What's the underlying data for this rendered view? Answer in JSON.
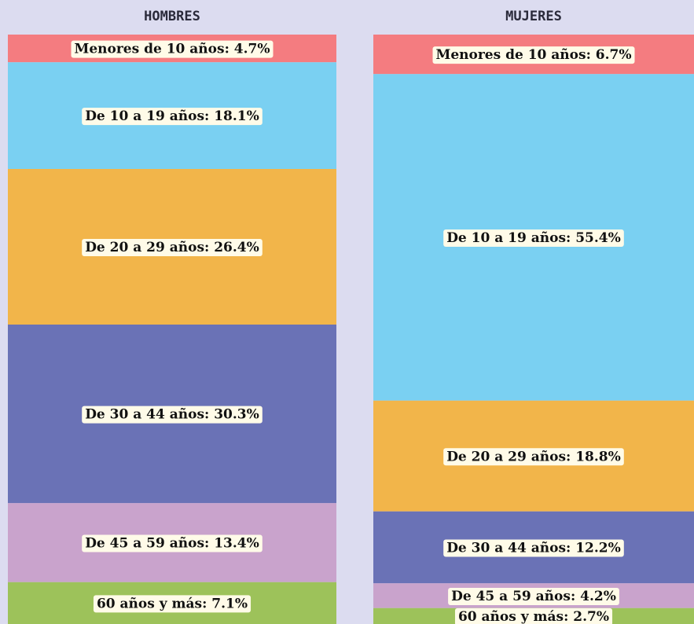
{
  "chart_data": [
    {
      "type": "stacked-column",
      "title": "HOMBRES",
      "values": [
        4.7,
        18.1,
        26.4,
        30.3,
        13.4,
        7.1
      ],
      "value_labels": [
        "Menores de 10 años: 4.7%",
        "De 10 a 19 años: 18.1%",
        "De 20 a 29 años: 26.4%",
        "De 30 a 44 años: 30.3%",
        "De 45 a 59 años: 13.4%",
        "60 años y más: 7.1%"
      ],
      "colors": [
        "#f47c80",
        "#7ad0f2",
        "#f2b54a",
        "#6a72b6",
        "#c9a3cc",
        "#9dc25a"
      ]
    },
    {
      "type": "stacked-column",
      "title": "MUJERES",
      "values": [
        6.7,
        55.4,
        18.8,
        12.2,
        4.2,
        2.7
      ],
      "value_labels": [
        "Menores de 10 años: 6.7%",
        "De 10 a 19 años: 55.4%",
        "De 20 a 29 años: 18.8%",
        "De 30 a 44 años: 12.2%",
        "De 45 a 59 años: 4.2%",
        "60 años y más: 2.7%"
      ],
      "colors": [
        "#f47c80",
        "#7ad0f2",
        "#f2b54a",
        "#6a72b6",
        "#c9a3cc",
        "#9dc25a"
      ]
    }
  ]
}
